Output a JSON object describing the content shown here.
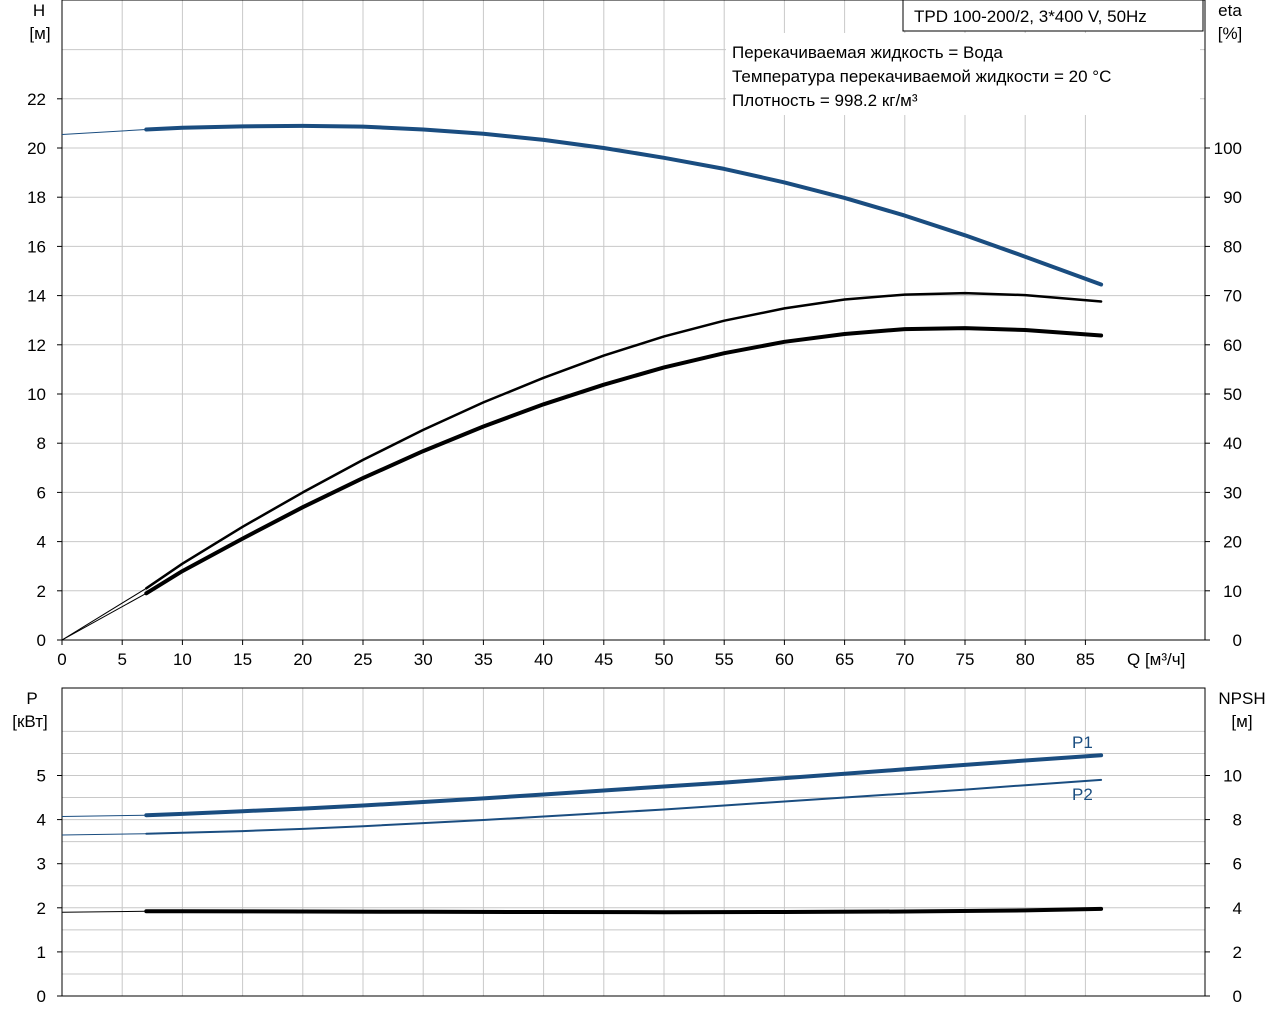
{
  "header": {
    "model": "TPD 100-200/2, 3*400 V, 50Hz"
  },
  "info": {
    "fluid": "Перекачиваемая жидкость = Вода",
    "temperature": "Температура перекачиваемой жидкости = 20 °C",
    "density": "Плотность = 998.2 кг/м³"
  },
  "colors": {
    "blue": "#1a4d80",
    "black": "#000000",
    "grid": "#c8c8c8"
  },
  "chart_data": [
    {
      "type": "line",
      "xlabel": "Q [м³/ч]",
      "ylabel_left": "H",
      "ylabel_left_unit": "[м]",
      "ylabel_right": "eta",
      "ylabel_right_unit": "[%]",
      "xlim": [
        0,
        90
      ],
      "ylim_left": [
        0,
        24
      ],
      "ylim_right": [
        0,
        120
      ],
      "x_ticks": [
        0,
        5,
        10,
        15,
        20,
        25,
        30,
        35,
        40,
        45,
        50,
        55,
        60,
        65,
        70,
        75,
        80,
        85
      ],
      "y_left_ticks": [
        0,
        2,
        4,
        6,
        8,
        10,
        12,
        14,
        16,
        18,
        20,
        22
      ],
      "y_right_ticks": [
        0,
        10,
        20,
        30,
        40,
        50,
        60,
        70,
        80,
        90,
        100
      ],
      "grid": true,
      "series": [
        {
          "id": "head",
          "axis": "left",
          "color": "blue",
          "x": [
            0,
            7,
            10,
            15,
            20,
            25,
            30,
            35,
            40,
            45,
            50,
            55,
            60,
            65,
            70,
            75,
            80,
            86.3
          ],
          "y": [
            20.55,
            20.75,
            20.82,
            20.88,
            20.9,
            20.87,
            20.75,
            20.58,
            20.33,
            20.0,
            19.6,
            19.15,
            18.6,
            17.97,
            17.25,
            16.45,
            15.58,
            14.45
          ]
        },
        {
          "id": "eta-upper",
          "axis": "right",
          "color": "black",
          "x": [
            0,
            7,
            10,
            15,
            20,
            25,
            30,
            35,
            40,
            45,
            50,
            55,
            60,
            65,
            70,
            75,
            80,
            86.3
          ],
          "y": [
            0,
            10.5,
            15.5,
            23.0,
            30.0,
            36.6,
            42.7,
            48.3,
            53.3,
            57.8,
            61.7,
            64.9,
            67.4,
            69.2,
            70.2,
            70.5,
            70.1,
            68.8
          ]
        },
        {
          "id": "eta-lower",
          "axis": "right",
          "color": "black",
          "x": [
            0,
            7,
            10,
            15,
            20,
            25,
            30,
            35,
            40,
            45,
            50,
            55,
            60,
            65,
            70,
            75,
            80,
            86.3
          ],
          "y": [
            0,
            9.5,
            14.0,
            20.6,
            27.0,
            32.9,
            38.4,
            43.4,
            47.9,
            51.9,
            55.4,
            58.3,
            60.6,
            62.2,
            63.2,
            63.4,
            63.0,
            61.9
          ]
        }
      ]
    },
    {
      "type": "line",
      "xlabel": "",
      "ylabel_left": "P",
      "ylabel_left_unit": "[кВт]",
      "ylabel_right": "NPSH",
      "ylabel_right_unit": "[м]",
      "xlim": [
        0,
        90
      ],
      "ylim_left": [
        0,
        6
      ],
      "ylim_right": [
        0,
        12
      ],
      "y_left_ticks": [
        0,
        1,
        2,
        3,
        4,
        5
      ],
      "y_right_ticks": [
        0,
        2,
        4,
        6,
        8,
        10
      ],
      "grid": true,
      "series": [
        {
          "id": "P1",
          "name": "P1",
          "axis": "left",
          "color": "blue",
          "x": [
            0,
            7,
            10,
            15,
            20,
            25,
            30,
            35,
            40,
            45,
            50,
            55,
            60,
            65,
            70,
            75,
            80,
            86.3
          ],
          "y": [
            4.07,
            4.1,
            4.13,
            4.19,
            4.25,
            4.32,
            4.4,
            4.48,
            4.57,
            4.66,
            4.75,
            4.84,
            4.94,
            5.04,
            5.14,
            5.24,
            5.34,
            5.46
          ]
        },
        {
          "id": "P2",
          "name": "P2",
          "axis": "left",
          "color": "blue",
          "x": [
            0,
            7,
            10,
            15,
            20,
            25,
            30,
            35,
            40,
            45,
            50,
            55,
            60,
            65,
            70,
            75,
            80,
            86.3
          ],
          "y": [
            3.65,
            3.68,
            3.7,
            3.74,
            3.79,
            3.85,
            3.92,
            3.99,
            4.07,
            4.15,
            4.23,
            4.32,
            4.41,
            4.5,
            4.59,
            4.68,
            4.78,
            4.9
          ]
        },
        {
          "id": "NPSH",
          "axis": "right",
          "color": "black",
          "x": [
            0,
            7,
            10,
            20,
            30,
            40,
            50,
            60,
            70,
            80,
            86.3
          ],
          "y": [
            3.8,
            3.84,
            3.84,
            3.83,
            3.82,
            3.81,
            3.8,
            3.81,
            3.83,
            3.88,
            3.95
          ]
        }
      ]
    }
  ]
}
